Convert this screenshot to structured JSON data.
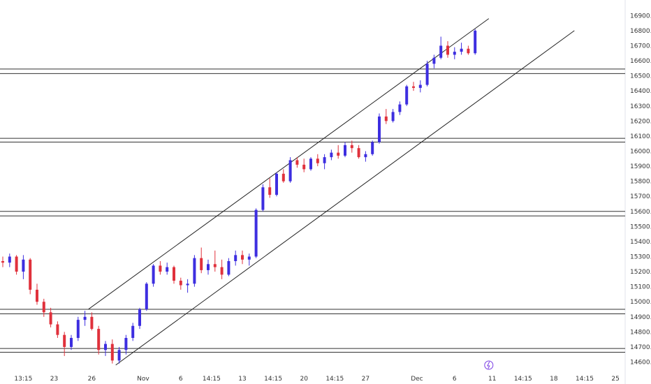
{
  "chart_data": {
    "type": "candlestick",
    "title": "",
    "xlabel": "",
    "ylabel": "",
    "ylim": [
      14570,
      16920
    ],
    "grid": false,
    "legend": "none",
    "colors": {
      "up": "#3d2ee0",
      "down": "#e0313c",
      "level_line": "#333333",
      "channel_line": "#222222",
      "event_icon": "#7b3fe4"
    },
    "y_ticks": [
      "14600.00",
      "14700.00",
      "14800.00",
      "14900.00",
      "15000.00",
      "15100.00",
      "15200.00",
      "15300.00",
      "15400.00",
      "15500.00",
      "15600.00",
      "15700.00",
      "15800.00",
      "15900.00",
      "16000.00",
      "16100.00",
      "16200.00",
      "16300.00",
      "16400.00",
      "16500.00",
      "16600.00",
      "16700.00",
      "16800.00",
      "16900.00"
    ],
    "x_ticks": [
      {
        "label": "13:15",
        "i": 3
      },
      {
        "label": "23",
        "i": 7.5
      },
      {
        "label": "26",
        "i": 13
      },
      {
        "label": "Nov",
        "i": 20.5
      },
      {
        "label": "6",
        "i": 26
      },
      {
        "label": "14:15",
        "i": 30.5
      },
      {
        "label": "13",
        "i": 35
      },
      {
        "label": "14:15",
        "i": 39.5
      },
      {
        "label": "20",
        "i": 44
      },
      {
        "label": "14:15",
        "i": 48.5
      },
      {
        "label": "27",
        "i": 53
      },
      {
        "label": "Dec",
        "i": 60.5
      },
      {
        "label": "6",
        "i": 66
      },
      {
        "label": "11",
        "i": 71.5
      },
      {
        "label": "14:15",
        "i": 76
      },
      {
        "label": "18",
        "i": 80.5
      },
      {
        "label": "14:15",
        "i": 85
      },
      {
        "label": "25",
        "i": 89.5
      }
    ],
    "horizontal_levels": [
      {
        "y": [
          16545,
          16515
        ]
      },
      {
        "y": [
          16085,
          16060
        ]
      },
      {
        "y": [
          15600,
          15570
        ]
      },
      {
        "y": [
          14950,
          14920
        ]
      },
      {
        "y": [
          14690,
          14665
        ]
      }
    ],
    "channel": {
      "upper": {
        "from": [
          12.5,
          14950
        ],
        "to": [
          71,
          16880
        ]
      },
      "lower": {
        "from": [
          16.5,
          14580
        ],
        "to": [
          83.5,
          16800
        ]
      }
    },
    "ohlc": [
      [
        15270,
        15300,
        15230,
        15260
      ],
      [
        15260,
        15320,
        15230,
        15300
      ],
      [
        15300,
        15310,
        15180,
        15200
      ],
      [
        15200,
        15310,
        15150,
        15280
      ],
      [
        15280,
        15290,
        15050,
        15080
      ],
      [
        15080,
        15120,
        14980,
        15000
      ],
      [
        15000,
        15020,
        14900,
        14930
      ],
      [
        14930,
        14960,
        14830,
        14850
      ],
      [
        14850,
        14870,
        14760,
        14780
      ],
      [
        14780,
        14800,
        14640,
        14700
      ],
      [
        14700,
        14780,
        14680,
        14760
      ],
      [
        14760,
        14900,
        14740,
        14880
      ],
      [
        14880,
        14940,
        14840,
        14900
      ],
      [
        14900,
        14930,
        14810,
        14820
      ],
      [
        14820,
        14840,
        14650,
        14680
      ],
      [
        14680,
        14740,
        14640,
        14720
      ],
      [
        14720,
        14750,
        14590,
        14610
      ],
      [
        14610,
        14700,
        14590,
        14680
      ],
      [
        14680,
        14780,
        14650,
        14760
      ],
      [
        14760,
        14860,
        14740,
        14840
      ],
      [
        14840,
        14960,
        14820,
        14950
      ],
      [
        14950,
        15130,
        14940,
        15120
      ],
      [
        15120,
        15250,
        15100,
        15240
      ],
      [
        15240,
        15270,
        15180,
        15200
      ],
      [
        15200,
        15260,
        15180,
        15230
      ],
      [
        15230,
        15240,
        15120,
        15140
      ],
      [
        15140,
        15160,
        15080,
        15110
      ],
      [
        15110,
        15150,
        15060,
        15120
      ],
      [
        15120,
        15310,
        15100,
        15290
      ],
      [
        15290,
        15360,
        15190,
        15210
      ],
      [
        15210,
        15280,
        15180,
        15250
      ],
      [
        15250,
        15340,
        15200,
        15230
      ],
      [
        15230,
        15280,
        15150,
        15180
      ],
      [
        15180,
        15290,
        15170,
        15270
      ],
      [
        15270,
        15340,
        15240,
        15310
      ],
      [
        15310,
        15340,
        15250,
        15280
      ],
      [
        15280,
        15320,
        15240,
        15300
      ],
      [
        15300,
        15620,
        15290,
        15610
      ],
      [
        15610,
        15780,
        15600,
        15760
      ],
      [
        15760,
        15820,
        15690,
        15710
      ],
      [
        15710,
        15860,
        15700,
        15850
      ],
      [
        15850,
        15880,
        15790,
        15800
      ],
      [
        15800,
        15960,
        15790,
        15940
      ],
      [
        15940,
        15960,
        15890,
        15910
      ],
      [
        15910,
        15950,
        15860,
        15880
      ],
      [
        15880,
        15960,
        15870,
        15950
      ],
      [
        15950,
        15980,
        15900,
        15920
      ],
      [
        15920,
        15980,
        15880,
        15960
      ],
      [
        15960,
        16010,
        15940,
        15990
      ],
      [
        15990,
        16040,
        15950,
        15970
      ],
      [
        15970,
        16060,
        15960,
        16040
      ],
      [
        16040,
        16070,
        15990,
        16020
      ],
      [
        16020,
        16040,
        15950,
        15960
      ],
      [
        15960,
        16000,
        15930,
        15980
      ],
      [
        15980,
        16070,
        15970,
        16060
      ],
      [
        16060,
        16250,
        16050,
        16230
      ],
      [
        16230,
        16280,
        16180,
        16200
      ],
      [
        16200,
        16280,
        16190,
        16260
      ],
      [
        16260,
        16330,
        16240,
        16310
      ],
      [
        16310,
        16440,
        16300,
        16430
      ],
      [
        16430,
        16460,
        16400,
        16420
      ],
      [
        16420,
        16470,
        16390,
        16440
      ],
      [
        16440,
        16600,
        16430,
        16580
      ],
      [
        16580,
        16640,
        16550,
        16620
      ],
      [
        16620,
        16760,
        16610,
        16700
      ],
      [
        16700,
        16730,
        16620,
        16640
      ],
      [
        16640,
        16690,
        16610,
        16660
      ],
      [
        16660,
        16720,
        16640,
        16680
      ],
      [
        16680,
        16700,
        16640,
        16650
      ],
      [
        16650,
        16810,
        16640,
        16800
      ]
    ]
  }
}
